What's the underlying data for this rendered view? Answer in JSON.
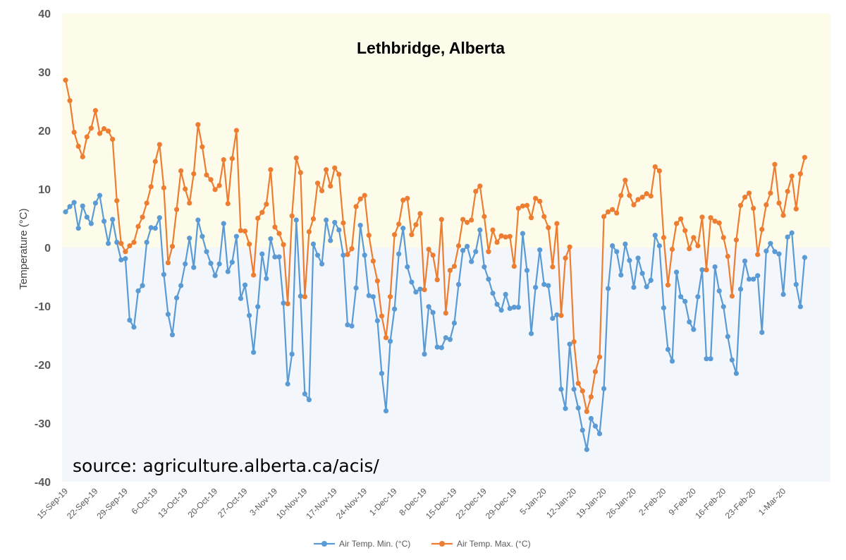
{
  "chart_data": {
    "type": "line",
    "title": "Lethbridge, Alberta",
    "xlabel": "",
    "ylabel": "Temperature (°C)",
    "ylim": [
      -40,
      40
    ],
    "yticks": [
      40,
      30,
      20,
      10,
      0,
      -10,
      -20,
      -30,
      -40
    ],
    "grid": false,
    "background_bands": [
      {
        "range": [
          0,
          40
        ],
        "color": "#fdfcea"
      },
      {
        "range": [
          -40,
          0
        ],
        "color": "#f3f7fb"
      }
    ],
    "annotation": "source: agriculture.alberta.ca/acis/",
    "legend_position": "bottom",
    "x_start_label": "15-Sep-19",
    "x_day_count": 178,
    "x_tick_every_days": 7,
    "x_tick_labels": [
      "15-Sep-19",
      "22-Sep-19",
      "29-Sep-19",
      "6-Oct-19",
      "13-Oct-19",
      "20-Oct-19",
      "27-Oct-19",
      "3-Nov-19",
      "10-Nov-19",
      "17-Nov-19",
      "24-Nov-19",
      "1-Dec-19",
      "8-Dec-19",
      "15-Dec-19",
      "22-Dec-19",
      "29-Dec-19",
      "5-Jan-20",
      "12-Jan-20",
      "19-Jan-20",
      "26-Jan-20",
      "2-Feb-20",
      "9-Feb-20",
      "16-Feb-20",
      "23-Feb-20",
      "1-Mar-20"
    ],
    "series": [
      {
        "name": "Air Temp. Min. (°C)",
        "color": "#5b9bd5",
        "values": [
          6.1,
          7.0,
          7.7,
          3.3,
          7.1,
          5.2,
          4.1,
          7.6,
          8.9,
          4.5,
          0.7,
          4.8,
          0.9,
          -2.1,
          -1.9,
          -12.4,
          -13.6,
          -7.4,
          -6.5,
          0.9,
          3.4,
          3.3,
          5.1,
          -4.6,
          -11.4,
          -14.9,
          -8.6,
          -6.5,
          -2.8,
          1.6,
          -3.4,
          4.7,
          1.9,
          -0.7,
          -2.7,
          -4.8,
          -2.8,
          4.1,
          -4.1,
          -2.5,
          1.9,
          -8.7,
          -6.4,
          -11.6,
          -17.9,
          -10.1,
          -1.1,
          -5.3,
          1.5,
          -1.6,
          -1.6,
          -9.5,
          -23.3,
          -18.2,
          4.7,
          -8.3,
          -25.0,
          -26.0,
          0.6,
          -1.3,
          -2.8,
          4.7,
          1.2,
          4.3,
          3.0,
          -1.3,
          -13.2,
          -13.4,
          -6.9,
          3.8,
          -1.3,
          -8.2,
          -8.4,
          -12.5,
          -21.5,
          -27.9,
          -16.0,
          -10.5,
          -1.1,
          3.3,
          -3.3,
          -5.9,
          -7.6,
          -7.1,
          -18.2,
          -10.1,
          -11.1,
          -17.0,
          -17.1,
          -15.4,
          -15.7,
          -12.9,
          -6.3,
          -0.5,
          0.2,
          -2.4,
          -0.7,
          3.0,
          -3.3,
          -5.4,
          -7.8,
          -9.7,
          -10.7,
          -8.0,
          -10.4,
          -10.2,
          -10.2,
          2.4,
          -3.9,
          -14.7,
          -6.8,
          -0.4,
          -6.3,
          -6.5,
          -12.1,
          -11.5,
          -24.2,
          -27.5,
          -16.5,
          -24.2,
          -27.4,
          -31.2,
          -34.5,
          -29.2,
          -30.5,
          -31.8,
          -24.1,
          -7.0,
          0.3,
          -0.7,
          -4.7,
          0.6,
          -2.2,
          -6.8,
          -1.8,
          -4.4,
          -6.7,
          -5.6,
          2.1,
          0.3,
          -10.3,
          -17.4,
          -19.4,
          -4.2,
          -8.4,
          -9.2,
          -12.7,
          -14.0,
          -8.4,
          -3.8,
          -19.0,
          -19.0,
          -3.3,
          -7.4,
          -10.1,
          -15.2,
          -19.2,
          -21.5,
          -7.1,
          -2.3,
          -5.4,
          -5.4,
          -4.8,
          -14.5,
          -0.6,
          0.7,
          -0.7,
          -1.1,
          -8.0,
          1.8,
          2.5,
          -6.3,
          -10.1,
          -1.7
        ]
      },
      {
        "name": "Air Temp. Max. (°C)",
        "color": "#ed7d31",
        "values": [
          28.6,
          25.1,
          19.7,
          17.3,
          15.5,
          18.9,
          20.4,
          23.4,
          19.5,
          20.3,
          19.9,
          18.5,
          8.0,
          0.7,
          -0.7,
          0.3,
          0.9,
          3.6,
          5.2,
          7.6,
          10.4,
          14.7,
          17.6,
          10.2,
          -2.6,
          0.2,
          6.5,
          13.1,
          10.0,
          7.6,
          12.6,
          21.0,
          17.2,
          12.4,
          11.6,
          9.9,
          10.6,
          15.0,
          7.5,
          15.2,
          20.0,
          2.9,
          2.8,
          0.6,
          -4.7,
          5.0,
          6.0,
          7.4,
          13.3,
          3.5,
          2.4,
          0.5,
          -9.6,
          5.4,
          15.3,
          12.8,
          -8.4,
          2.7,
          4.9,
          11.0,
          9.7,
          13.3,
          10.5,
          13.6,
          12.5,
          4.2,
          -1.2,
          -0.2,
          7.0,
          8.3,
          8.9,
          2.1,
          -2.3,
          -5.7,
          -11.7,
          -15.4,
          -8.4,
          2.2,
          4.0,
          8.1,
          8.4,
          2.2,
          3.9,
          5.8,
          -7.2,
          -0.3,
          -1.3,
          -5.5,
          4.8,
          -11.2,
          -3.9,
          -3.2,
          0.3,
          4.8,
          4.3,
          4.7,
          9.6,
          10.5,
          5.3,
          -0.7,
          3.0,
          0.9,
          2.0,
          1.8,
          1.9,
          -3.2,
          6.7,
          7.1,
          7.2,
          5.1,
          8.4,
          7.9,
          5.3,
          3.4,
          -3.3,
          4.1,
          -11.6,
          -1.8,
          0.1,
          -16.1,
          -23.2,
          -24.5,
          -28.0,
          -25.5,
          -21.2,
          -18.7,
          5.3,
          6.1,
          6.5,
          5.9,
          8.9,
          11.5,
          8.9,
          7.3,
          8.2,
          8.6,
          9.2,
          8.8,
          13.8,
          13.1,
          1.7,
          -6.4,
          -0.3,
          4.1,
          4.9,
          2.9,
          -0.2,
          1.7,
          0.3,
          5.2,
          -3.8,
          5.1,
          4.5,
          4.2,
          1.7,
          -1.5,
          -8.3,
          1.3,
          7.2,
          8.6,
          9.3,
          6.7,
          -1.2,
          3.1,
          7.3,
          9.3,
          14.2,
          7.6,
          5.5,
          9.6,
          12.2,
          6.6,
          12.6,
          15.4
        ]
      }
    ]
  }
}
